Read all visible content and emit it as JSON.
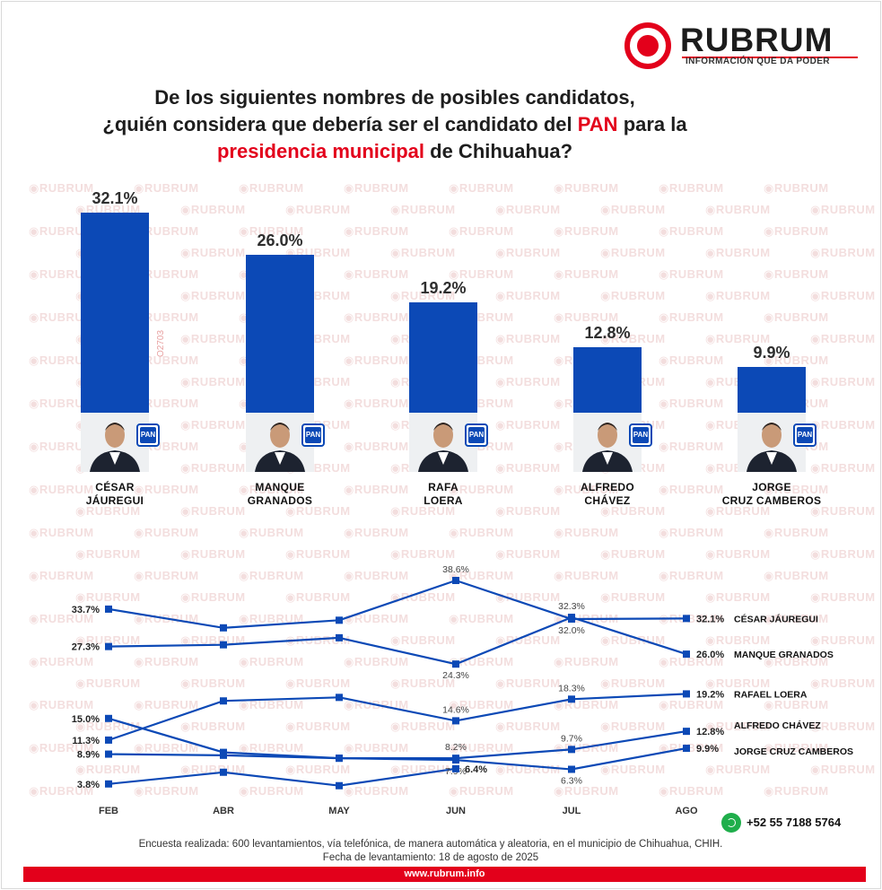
{
  "brand": {
    "name": "RUBRUM",
    "tagline": "INFORMACIÓN QUE DA PODER",
    "red": "#e3001b",
    "blue": "#0c49b6"
  },
  "title": {
    "line1": "De los siguientes nombres de posibles candidatos,",
    "line2_a": "¿quién considera que debería ser el candidato del ",
    "line2_red": "PAN",
    "line2_b": " para la",
    "line3_red": "presidencia municipal",
    "line3_b": " de Chihuahua?"
  },
  "side_code": "O2703",
  "badge_text": "PAN",
  "chart_data": [
    {
      "type": "bar",
      "categories": [
        "CÉSAR JÁUREGUI",
        "MANQUE GRANADOS",
        "RAFA LOERA",
        "ALFREDO CHÁVEZ",
        "JORGE CRUZ CAMBEROS"
      ],
      "labels": [
        [
          "CÉSAR",
          "JÁUREGUI"
        ],
        [
          "MANQUE",
          "GRANADOS"
        ],
        [
          "RAFA",
          "LOERA"
        ],
        [
          "ALFREDO",
          "CHÁVEZ"
        ],
        [
          "JORGE",
          "CRUZ CAMBEROS"
        ]
      ],
      "values": [
        32.1,
        26.0,
        19.2,
        12.8,
        9.9
      ],
      "value_labels": [
        "32.1%",
        "26.0%",
        "19.2%",
        "12.8%",
        "9.9%"
      ],
      "ylim": [
        0,
        32.1
      ]
    },
    {
      "type": "line",
      "x": [
        "FEB",
        "ABR",
        "MAY",
        "JUN",
        "JUL",
        "AGO"
      ],
      "ylim": [
        3.0,
        38.6
      ],
      "series": [
        {
          "name": "CÉSAR JÁUREGUI",
          "values": [
            33.7,
            30.5,
            31.8,
            38.6,
            32.0,
            32.1
          ],
          "labels": [
            "33.7%",
            "",
            "",
            "38.6%",
            "32.0%",
            "32.1%"
          ]
        },
        {
          "name": "MANQUE GRANADOS",
          "values": [
            27.3,
            27.6,
            28.8,
            24.3,
            32.3,
            26.0
          ],
          "labels": [
            "27.3%",
            "",
            "",
            "24.3%",
            "32.3%",
            "26.0%"
          ]
        },
        {
          "name": "RAFAEL LOERA",
          "values": [
            11.3,
            18.0,
            18.6,
            14.6,
            18.3,
            19.2
          ],
          "labels": [
            "11.3%",
            "",
            "",
            "14.6%",
            "18.3%",
            "19.2%"
          ]
        },
        {
          "name": "ALFREDO CHÁVEZ",
          "values": [
            8.9,
            8.7,
            8.2,
            8.2,
            9.7,
            12.8
          ],
          "labels": [
            "8.9%",
            "",
            "",
            "8.2%",
            "9.7%",
            "12.8%"
          ]
        },
        {
          "name": "JORGE CRUZ CAMBEROS",
          "values": [
            15.0,
            9.2,
            8.2,
            7.9,
            6.3,
            9.9
          ],
          "labels": [
            "15.0%",
            "",
            "",
            "7.9%",
            "6.3%",
            "9.9%"
          ]
        },
        {
          "name": "",
          "values": [
            3.8,
            5.8,
            3.5,
            6.4,
            null,
            null
          ],
          "labels": [
            "3.8%",
            "",
            "",
            "6.4%",
            "",
            ""
          ]
        }
      ]
    }
  ],
  "contact": {
    "phone": "+52 55 7188 5764"
  },
  "footer": {
    "line1": "Encuesta realizada: 600 levantamientos, vía telefónica, de manera automática y aleatoria, en el municipio de Chihuahua, CHIH.",
    "line2": "Fecha de levantamiento: 18 de agosto de 2025",
    "url": "www.rubrum.info"
  }
}
